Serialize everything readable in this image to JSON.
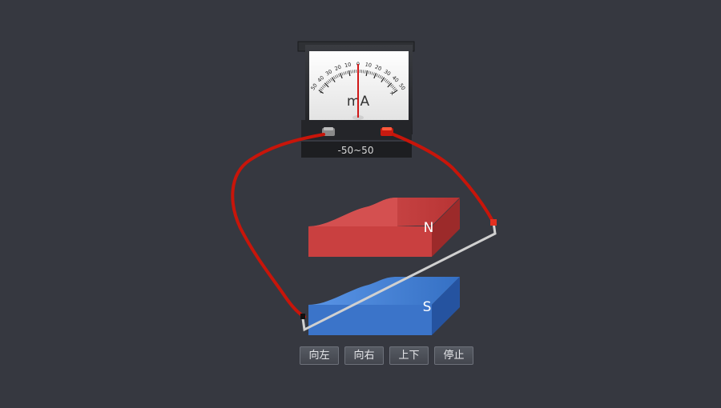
{
  "meter": {
    "scale_numbers": [
      "50",
      "40",
      "30",
      "20",
      "10",
      "0",
      "10",
      "20",
      "30",
      "40",
      "50"
    ],
    "minus_sign": "-",
    "plus_sign": "+",
    "unit": "mA",
    "range_label": "-50~50",
    "needle_value": 0
  },
  "magnets": {
    "north_label": "N",
    "south_label": "S"
  },
  "controls": {
    "left": "向左",
    "right": "向右",
    "updown": "上下",
    "stop": "停止"
  },
  "colors": {
    "background": "#363840",
    "wire": "#c8150a",
    "north_magnet": "#cc4444",
    "south_magnet": "#3f7fd2",
    "rod": "#c8c8c8",
    "needle": "#d01818"
  }
}
